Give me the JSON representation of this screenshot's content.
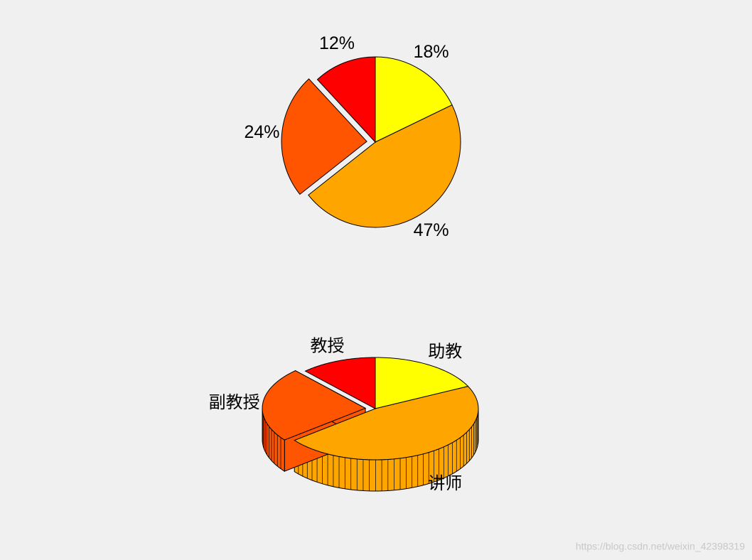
{
  "chart_data": [
    {
      "type": "pie",
      "values": [
        18,
        47,
        24,
        12
      ],
      "value_labels": [
        "18%",
        "47%",
        "24%",
        "12%"
      ],
      "colors": [
        "#ffff00",
        "#ffa500",
        "#ff5500",
        "#ff0000"
      ],
      "explode": [
        0,
        0,
        1,
        0
      ]
    },
    {
      "type": "pie3d",
      "categories": [
        "助教",
        "讲师",
        "副教授",
        "教授"
      ],
      "values": [
        18,
        47,
        24,
        12
      ],
      "colors": [
        "#ffff00",
        "#ffa500",
        "#ff5500",
        "#ff0000"
      ],
      "explode": [
        0,
        0,
        1,
        0
      ]
    }
  ],
  "watermark": "https://blog.csdn.net/weixin_42398319"
}
